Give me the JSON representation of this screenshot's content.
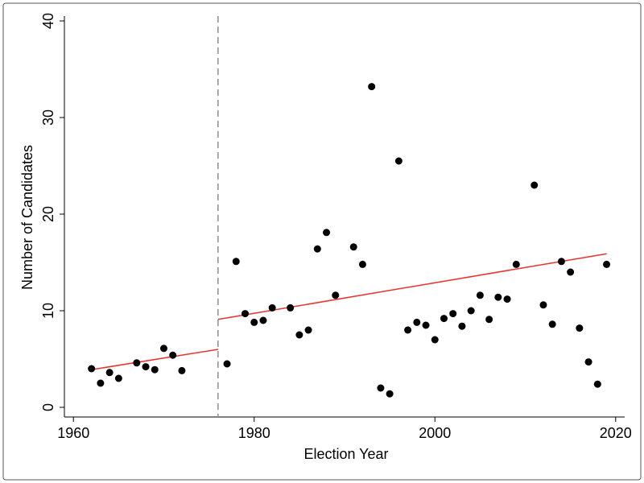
{
  "chart_data": {
    "type": "scatter",
    "title": "",
    "xlabel": "Election Year",
    "ylabel": "Number of Candidates",
    "xlim": [
      1959,
      2021
    ],
    "ylim": [
      -1,
      40.5
    ],
    "xticks": [
      1960,
      1980,
      2000,
      2020
    ],
    "yticks": [
      0,
      10,
      20,
      30,
      40
    ],
    "xtick_labels": [
      "1960",
      "1980",
      "2000",
      "2020"
    ],
    "ytick_labels": [
      "0",
      "10",
      "20",
      "30",
      "40"
    ],
    "grid": false,
    "legend": "none",
    "cutoff_year": 1976,
    "points": [
      [
        1962,
        4.0
      ],
      [
        1963,
        2.5
      ],
      [
        1964,
        3.6
      ],
      [
        1965,
        3.0
      ],
      [
        1967,
        4.6
      ],
      [
        1968,
        4.2
      ],
      [
        1969,
        3.9
      ],
      [
        1970,
        6.1
      ],
      [
        1971,
        5.4
      ],
      [
        1972,
        3.8
      ],
      [
        1977,
        4.5
      ],
      [
        1978,
        15.1
      ],
      [
        1979,
        9.7
      ],
      [
        1980,
        8.8
      ],
      [
        1981,
        9.0
      ],
      [
        1982,
        10.3
      ],
      [
        1984,
        10.3
      ],
      [
        1985,
        7.5
      ],
      [
        1986,
        8.0
      ],
      [
        1987,
        16.4
      ],
      [
        1988,
        18.1
      ],
      [
        1989,
        11.6
      ],
      [
        1991,
        16.6
      ],
      [
        1992,
        14.8
      ],
      [
        1993,
        33.2
      ],
      [
        1994,
        2.0
      ],
      [
        1995,
        1.4
      ],
      [
        1996,
        25.5
      ],
      [
        1997,
        8.0
      ],
      [
        1998,
        8.8
      ],
      [
        1999,
        8.5
      ],
      [
        2000,
        7.0
      ],
      [
        2001,
        9.2
      ],
      [
        2002,
        9.7
      ],
      [
        2003,
        8.4
      ],
      [
        2004,
        10.0
      ],
      [
        2005,
        11.6
      ],
      [
        2006,
        9.1
      ],
      [
        2007,
        11.4
      ],
      [
        2008,
        11.2
      ],
      [
        2009,
        14.8
      ],
      [
        2011,
        23.0
      ],
      [
        2012,
        10.6
      ],
      [
        2013,
        8.6
      ],
      [
        2014,
        15.1
      ],
      [
        2015,
        14.0
      ],
      [
        2016,
        8.2
      ],
      [
        2017,
        4.7
      ],
      [
        2018,
        2.4
      ],
      [
        2019,
        14.8
      ]
    ],
    "fit_lines": [
      {
        "x": [
          1962,
          1976
        ],
        "y": [
          3.9,
          6.0
        ]
      },
      {
        "x": [
          1976,
          2019
        ],
        "y": [
          9.1,
          15.9
        ]
      }
    ],
    "colors": {
      "points": "#000000",
      "fit_line": "#e8322b",
      "cutoff_line": "#8c8c8c",
      "axes": "#000000",
      "frame": "#555555"
    }
  }
}
